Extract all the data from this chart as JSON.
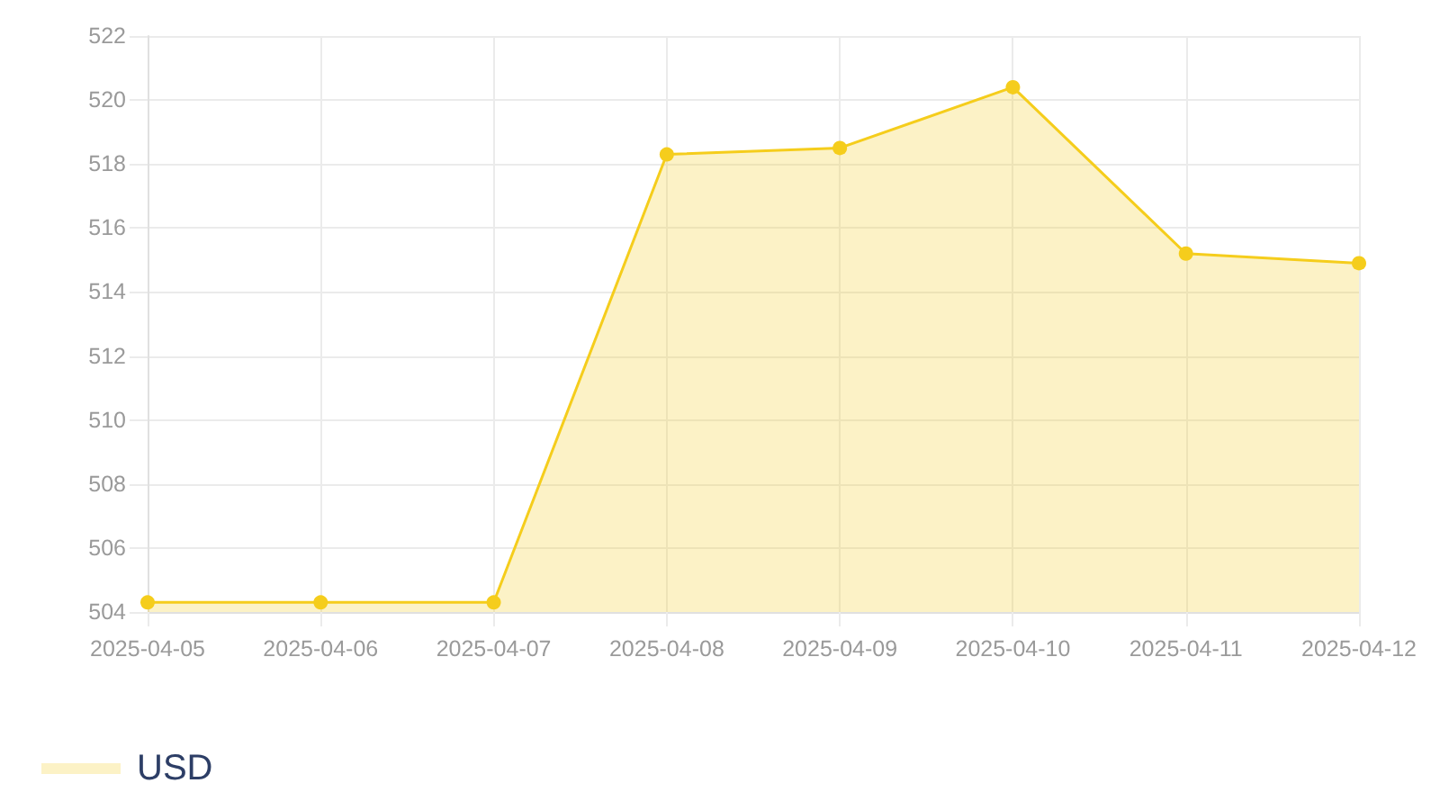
{
  "chart_data": {
    "type": "area",
    "categories": [
      "2025-04-05",
      "2025-04-06",
      "2025-04-07",
      "2025-04-08",
      "2025-04-09",
      "2025-04-10",
      "2025-04-11",
      "2025-04-12"
    ],
    "series": [
      {
        "name": "USD",
        "color": "#f5cd1c",
        "values": [
          504.3,
          504.3,
          504.3,
          518.3,
          518.5,
          520.4,
          515.2,
          514.9
        ]
      }
    ],
    "ylim": [
      504,
      522
    ],
    "yticks": [
      504,
      506,
      508,
      510,
      512,
      514,
      516,
      518,
      520,
      522
    ],
    "grid": true,
    "legend": "bottom left",
    "marker": "circle",
    "line_style": "solid"
  }
}
